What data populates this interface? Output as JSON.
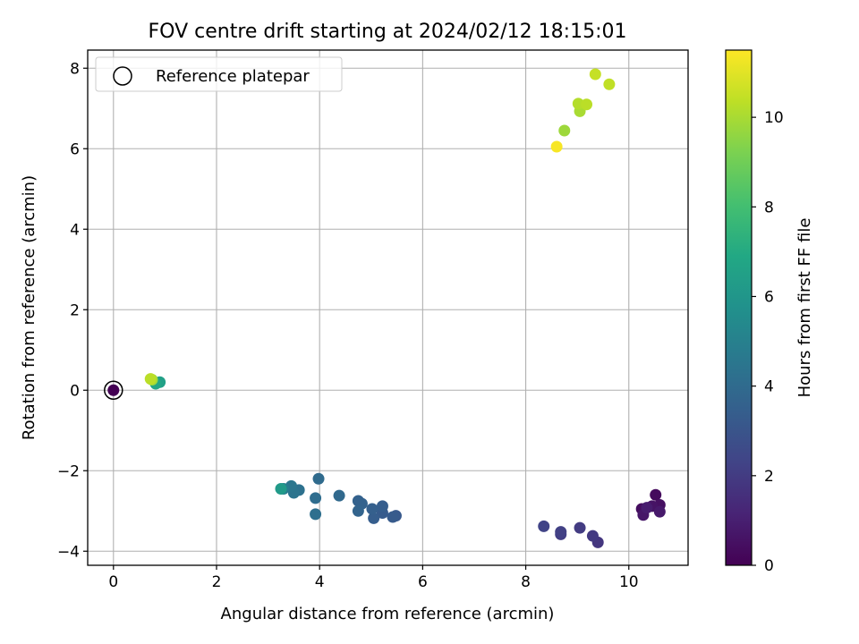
{
  "chart_data": {
    "type": "scatter",
    "title": "FOV centre drift starting at 2024/02/12 18:15:01",
    "xlabel": "Angular distance from reference (arcmin)",
    "ylabel": "Rotation from reference (arcmin)",
    "xlim": [
      -0.5,
      11.15
    ],
    "ylim": [
      -4.35,
      8.45
    ],
    "xticks": [
      0,
      2,
      4,
      6,
      8,
      10
    ],
    "yticks": [
      -4,
      -2,
      0,
      2,
      4,
      6,
      8
    ],
    "xtick_labels": [
      "0",
      "2",
      "4",
      "6",
      "8",
      "10"
    ],
    "ytick_labels": [
      "−4",
      "−2",
      "0",
      "2",
      "4",
      "6",
      "8"
    ],
    "grid": true,
    "legend": {
      "placement": "upper-left",
      "entries": [
        "Reference platepar"
      ]
    },
    "colorbar": {
      "label": "Hours from first FF file",
      "colormap": "viridis",
      "range": [
        0,
        11.5
      ],
      "ticks": [
        0,
        2,
        4,
        6,
        8,
        10
      ],
      "tick_labels": [
        "0",
        "2",
        "4",
        "6",
        "8",
        "10"
      ]
    },
    "reference_point": {
      "x": 0.0,
      "y": 0.0,
      "c": 0.0
    },
    "points": [
      {
        "x": 10.52,
        "y": -2.6,
        "c": 0.3
      },
      {
        "x": 10.25,
        "y": -2.95,
        "c": 0.4
      },
      {
        "x": 10.6,
        "y": -2.85,
        "c": 0.5
      },
      {
        "x": 10.45,
        "y": -2.88,
        "c": 0.6
      },
      {
        "x": 10.28,
        "y": -3.1,
        "c": 0.7
      },
      {
        "x": 10.6,
        "y": -3.02,
        "c": 0.8
      },
      {
        "x": 10.35,
        "y": -2.92,
        "c": 0.9
      },
      {
        "x": 9.4,
        "y": -3.78,
        "c": 1.8
      },
      {
        "x": 9.3,
        "y": -3.62,
        "c": 1.9
      },
      {
        "x": 9.05,
        "y": -3.42,
        "c": 2.0
      },
      {
        "x": 8.68,
        "y": -3.58,
        "c": 2.1
      },
      {
        "x": 8.68,
        "y": -3.52,
        "c": 2.2
      },
      {
        "x": 8.35,
        "y": -3.38,
        "c": 2.3
      },
      {
        "x": 5.48,
        "y": -3.12,
        "c": 3.2
      },
      {
        "x": 5.42,
        "y": -3.15,
        "c": 3.3
      },
      {
        "x": 5.22,
        "y": -3.05,
        "c": 3.3
      },
      {
        "x": 5.22,
        "y": -2.88,
        "c": 3.4
      },
      {
        "x": 5.05,
        "y": -3.18,
        "c": 3.4
      },
      {
        "x": 5.02,
        "y": -2.95,
        "c": 3.5
      },
      {
        "x": 4.82,
        "y": -2.82,
        "c": 3.6
      },
      {
        "x": 4.75,
        "y": -2.75,
        "c": 3.6
      },
      {
        "x": 4.75,
        "y": -3.0,
        "c": 3.7
      },
      {
        "x": 4.38,
        "y": -2.62,
        "c": 3.9
      },
      {
        "x": 3.98,
        "y": -2.2,
        "c": 4.0
      },
      {
        "x": 3.92,
        "y": -2.68,
        "c": 4.1
      },
      {
        "x": 3.92,
        "y": -3.08,
        "c": 4.2
      },
      {
        "x": 3.6,
        "y": -2.48,
        "c": 4.3
      },
      {
        "x": 3.5,
        "y": -2.55,
        "c": 4.4
      },
      {
        "x": 3.45,
        "y": -2.38,
        "c": 4.5
      },
      {
        "x": 3.3,
        "y": -2.45,
        "c": 4.8
      },
      {
        "x": 3.25,
        "y": -2.45,
        "c": 6.2
      },
      {
        "x": 0.9,
        "y": 0.2,
        "c": 6.5
      },
      {
        "x": 0.82,
        "y": 0.16,
        "c": 6.8
      },
      {
        "x": 0.75,
        "y": 0.26,
        "c": 9.8
      },
      {
        "x": 0.72,
        "y": 0.28,
        "c": 10.3
      },
      {
        "x": 8.75,
        "y": 6.45,
        "c": 9.8
      },
      {
        "x": 9.05,
        "y": 6.93,
        "c": 10.0
      },
      {
        "x": 9.02,
        "y": 7.12,
        "c": 10.2
      },
      {
        "x": 9.18,
        "y": 7.1,
        "c": 10.3
      },
      {
        "x": 9.62,
        "y": 7.6,
        "c": 10.4
      },
      {
        "x": 9.35,
        "y": 7.85,
        "c": 10.5
      },
      {
        "x": 8.6,
        "y": 6.05,
        "c": 11.4
      }
    ]
  }
}
